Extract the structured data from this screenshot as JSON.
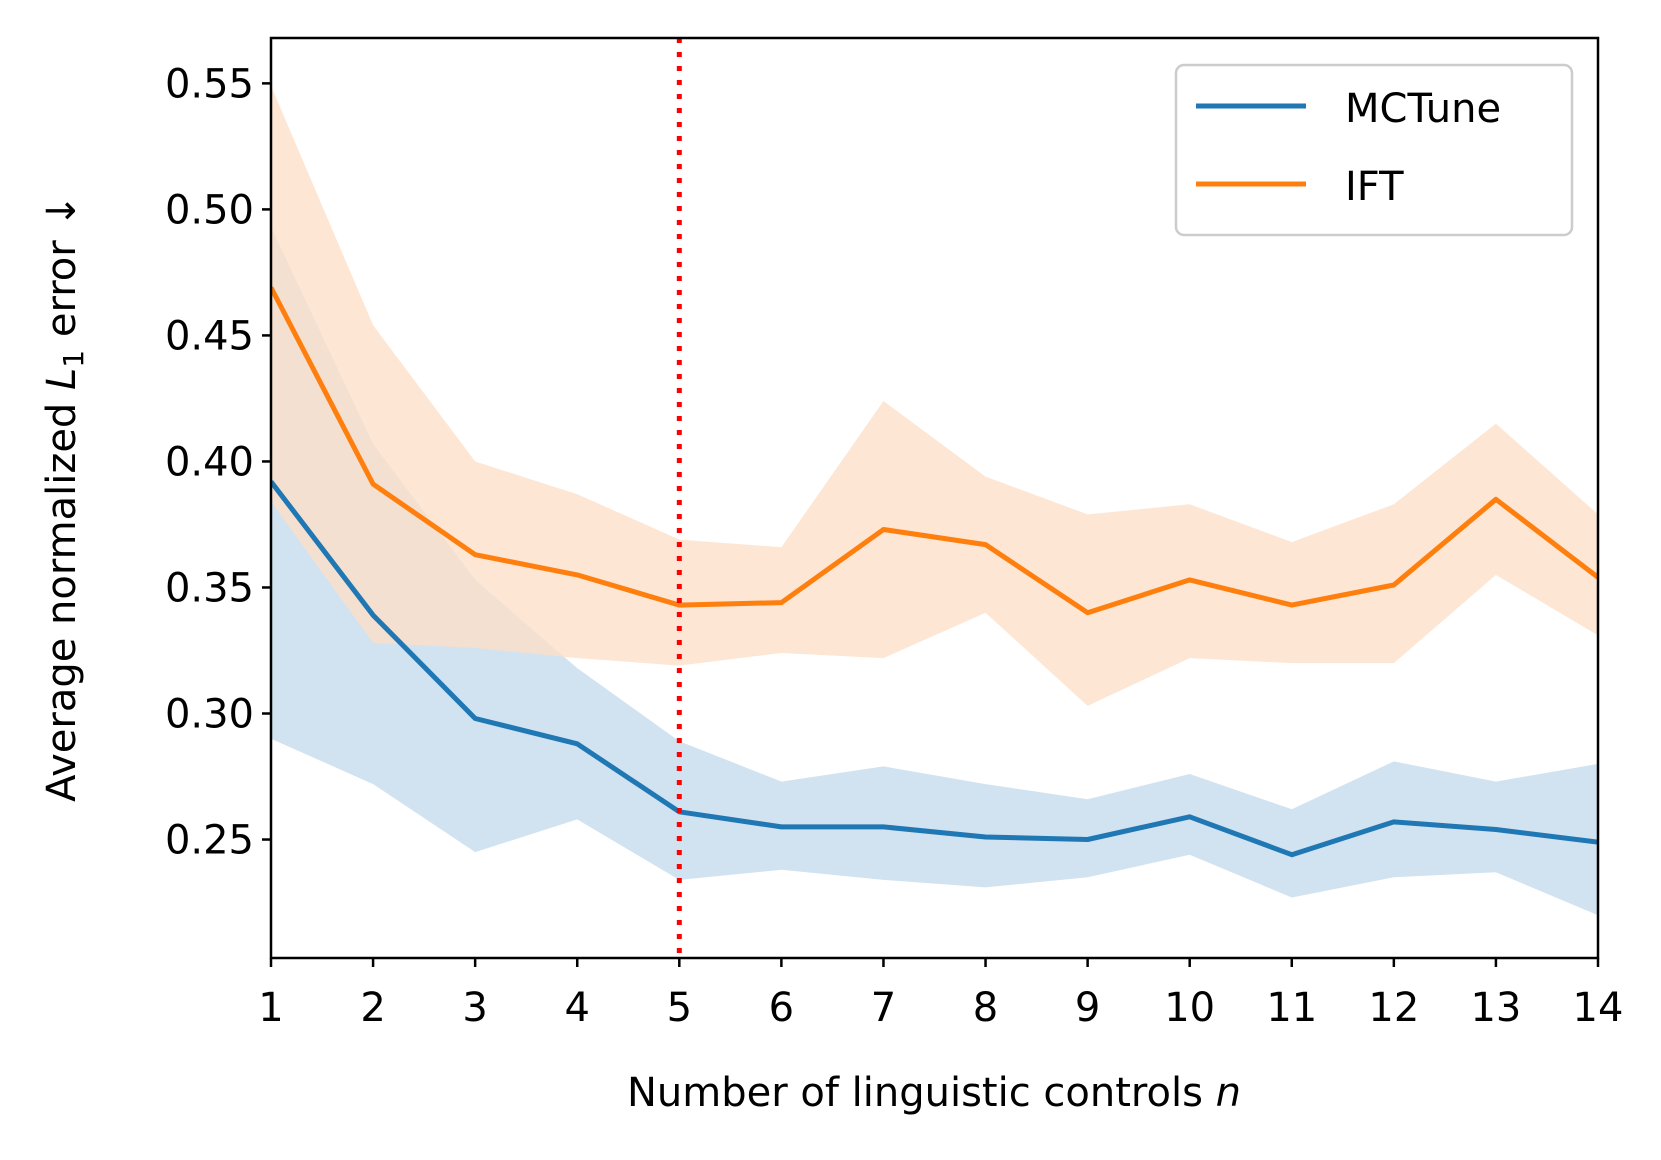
{
  "chart_data": {
    "type": "line",
    "title": "",
    "xlabel_main": "Number of linguistic controls ",
    "xlabel_italic": "n",
    "ylabel_main": "Average normalized ",
    "ylabel_italic": "L",
    "ylabel_sub": "1",
    "ylabel_tail": " error ↓",
    "x": [
      1,
      2,
      3,
      4,
      5,
      6,
      7,
      8,
      9,
      10,
      11,
      12,
      13,
      14
    ],
    "xlim": [
      1,
      14
    ],
    "ylim": [
      0.203,
      0.568
    ],
    "xticks": [
      "1",
      "2",
      "3",
      "4",
      "5",
      "6",
      "7",
      "8",
      "9",
      "10",
      "11",
      "12",
      "13",
      "14"
    ],
    "yticks": [
      {
        "value": 0.25,
        "label": "0.25"
      },
      {
        "value": 0.3,
        "label": "0.30"
      },
      {
        "value": 0.35,
        "label": "0.35"
      },
      {
        "value": 0.4,
        "label": "0.40"
      },
      {
        "value": 0.45,
        "label": "0.45"
      },
      {
        "value": 0.5,
        "label": "0.50"
      },
      {
        "value": 0.55,
        "label": "0.55"
      }
    ],
    "vline": {
      "x": 5,
      "color": "#ff0000",
      "style": "dotted"
    },
    "legend": {
      "placement": "upper-right"
    },
    "series": [
      {
        "name": "MCTune",
        "color": "#1f77b4",
        "fill_color": "#c6dbed",
        "values": [
          0.392,
          0.339,
          0.298,
          0.288,
          0.261,
          0.255,
          0.255,
          0.251,
          0.25,
          0.259,
          0.244,
          0.257,
          0.254,
          0.249
        ],
        "lower": [
          0.29,
          0.272,
          0.245,
          0.258,
          0.234,
          0.238,
          0.234,
          0.231,
          0.235,
          0.244,
          0.227,
          0.235,
          0.237,
          0.22
        ],
        "upper": [
          0.493,
          0.407,
          0.353,
          0.318,
          0.289,
          0.273,
          0.279,
          0.272,
          0.266,
          0.276,
          0.262,
          0.281,
          0.273,
          0.28
        ]
      },
      {
        "name": "IFT",
        "color": "#ff7f0e",
        "fill_color": "#fde0c9",
        "values": [
          0.469,
          0.391,
          0.363,
          0.355,
          0.343,
          0.344,
          0.373,
          0.367,
          0.34,
          0.353,
          0.343,
          0.351,
          0.385,
          0.354
        ],
        "lower": [
          0.384,
          0.328,
          0.326,
          0.322,
          0.319,
          0.324,
          0.322,
          0.34,
          0.303,
          0.322,
          0.32,
          0.32,
          0.355,
          0.331
        ],
        "upper": [
          0.549,
          0.454,
          0.4,
          0.387,
          0.369,
          0.366,
          0.424,
          0.394,
          0.379,
          0.383,
          0.368,
          0.383,
          0.415,
          0.379
        ]
      }
    ]
  }
}
